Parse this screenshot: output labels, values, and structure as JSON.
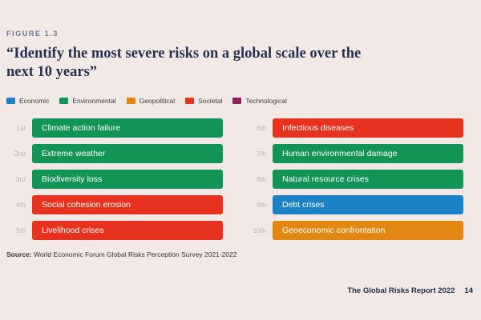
{
  "figure_label": "FIGURE 1.3",
  "title": "“Identify the most severe risks on a global scale over the next 10 years”",
  "legend": {
    "items": [
      {
        "label": "Economic",
        "color": "#1B83C5"
      },
      {
        "label": "Environmental",
        "color": "#129457"
      },
      {
        "label": "Geopolitical",
        "color": "#E28812"
      },
      {
        "label": "Societal",
        "color": "#E6321F"
      },
      {
        "label": "Technological",
        "color": "#8E2063"
      }
    ]
  },
  "chart_data": {
    "type": "bar",
    "title": "Identify the most severe risks on a global scale over the next 10 years",
    "legend_categories": [
      "Economic",
      "Environmental",
      "Geopolitical",
      "Societal",
      "Technological"
    ],
    "category_colors": {
      "Economic": "#1B83C5",
      "Environmental": "#129457",
      "Geopolitical": "#E28812",
      "Societal": "#E6321F",
      "Technological": "#8E2063"
    },
    "ranking": [
      {
        "rank": "1st",
        "risk": "Climate action failure",
        "category": "Environmental",
        "color": "#129457"
      },
      {
        "rank": "2nd",
        "risk": "Extreme weather",
        "category": "Environmental",
        "color": "#129457"
      },
      {
        "rank": "3rd",
        "risk": "Biodiversity loss",
        "category": "Environmental",
        "color": "#129457"
      },
      {
        "rank": "4th",
        "risk": "Social cohesion erosion",
        "category": "Societal",
        "color": "#E6321F"
      },
      {
        "rank": "5th",
        "risk": "Livelihood crises",
        "category": "Societal",
        "color": "#E6321F"
      },
      {
        "rank": "6th",
        "risk": "Infectious diseases",
        "category": "Societal",
        "color": "#E6321F"
      },
      {
        "rank": "7th",
        "risk": "Human environmental damage",
        "category": "Environmental",
        "color": "#129457"
      },
      {
        "rank": "8th",
        "risk": "Natural resource crises",
        "category": "Environmental",
        "color": "#129457"
      },
      {
        "rank": "9th",
        "risk": "Debt crises",
        "category": "Economic",
        "color": "#1B83C5"
      },
      {
        "rank": "10th",
        "risk": "Geoeconomic confrontation",
        "category": "Geopolitical",
        "color": "#E28812"
      }
    ]
  },
  "source": {
    "prefix": "Source:",
    "text": " World Economic Forum Global Risks Perception Survey 2021-2022"
  },
  "footer": {
    "report_title": "The Global Risks Report 2022",
    "page_number": "14"
  }
}
